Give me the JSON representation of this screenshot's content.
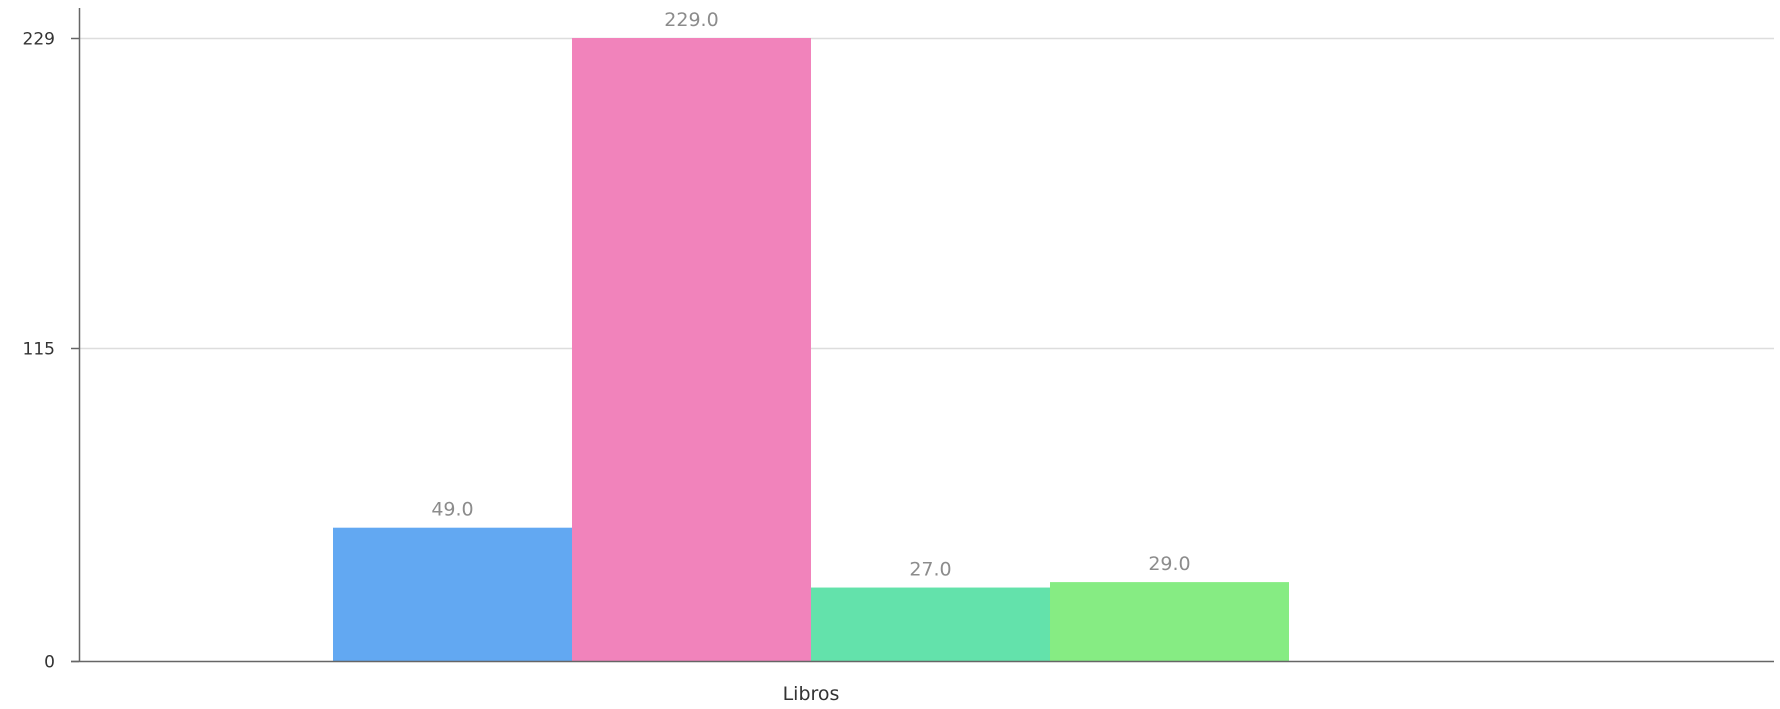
{
  "chart_data": {
    "type": "bar",
    "categories": [
      "Libros"
    ],
    "series": [
      {
        "values": [
          49.0
        ],
        "label": "49.0",
        "color": "#62a8f2"
      },
      {
        "values": [
          229.0
        ],
        "label": "229.0",
        "color": "#f183bb"
      },
      {
        "values": [
          27.0
        ],
        "label": "27.0",
        "color": "#63e2ab"
      },
      {
        "values": [
          29.0
        ],
        "label": "29.0",
        "color": "#86ec83"
      }
    ],
    "yticks": [
      {
        "value": 0,
        "label": "0"
      },
      {
        "value": 115,
        "label": "115"
      },
      {
        "value": 229,
        "label": "229"
      }
    ],
    "ylim": [
      0,
      229
    ],
    "grid": true,
    "axis_color": "#666666",
    "grid_color": "#dddddd"
  }
}
